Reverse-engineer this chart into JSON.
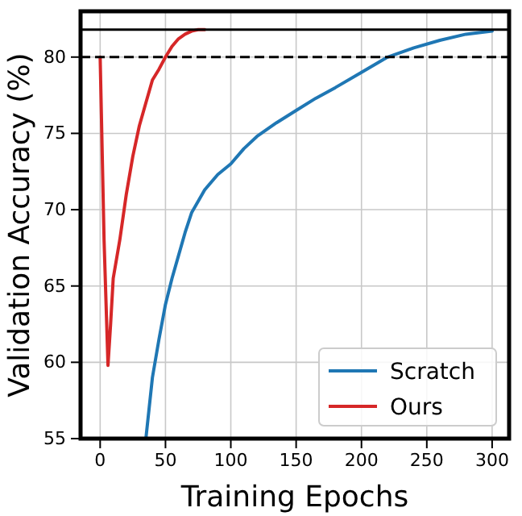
{
  "chart_data": {
    "type": "line",
    "xlabel": "Training Epochs",
    "ylabel": "Validation Accuracy (%)",
    "xlim": [
      -15,
      313
    ],
    "xticks": [
      0,
      50,
      100,
      150,
      200,
      250,
      300
    ],
    "ylim": [
      55,
      83
    ],
    "yticks": [
      55,
      60,
      65,
      70,
      75,
      80
    ],
    "grid": true,
    "legend": "bottom right",
    "line_style": "solid",
    "ref_lines": [
      {
        "axis": "y",
        "value": 81.8,
        "color": "#000000",
        "line_style": "solid"
      },
      {
        "axis": "y",
        "value": 80,
        "color": "#000000",
        "line_style": "dashed"
      }
    ],
    "series": [
      {
        "name": "Scratch",
        "color": "#1f77b4",
        "x": [
          35,
          40,
          45,
          50,
          55,
          60,
          65,
          70,
          80,
          90,
          100,
          110,
          120,
          135,
          150,
          165,
          180,
          200,
          220,
          240,
          260,
          280,
          300
        ],
        "values": [
          55,
          59,
          61.5,
          63.8,
          65.5,
          67,
          68.5,
          69.8,
          71.3,
          72.3,
          73,
          74,
          74.8,
          75.7,
          76.5,
          77.3,
          78,
          79,
          80,
          80.6,
          81.1,
          81.5,
          81.7
        ]
      },
      {
        "name": "Ours",
        "color": "#d62728",
        "x": [
          0,
          3,
          6,
          8,
          10,
          15,
          20,
          25,
          30,
          35,
          40,
          45,
          50,
          55,
          60,
          65,
          70,
          75,
          80
        ],
        "values": [
          80,
          68,
          59.8,
          62.5,
          65.5,
          68,
          71,
          73.5,
          75.5,
          77,
          78.5,
          79.2,
          80,
          80.7,
          81.2,
          81.5,
          81.7,
          81.8,
          81.8
        ]
      }
    ]
  }
}
